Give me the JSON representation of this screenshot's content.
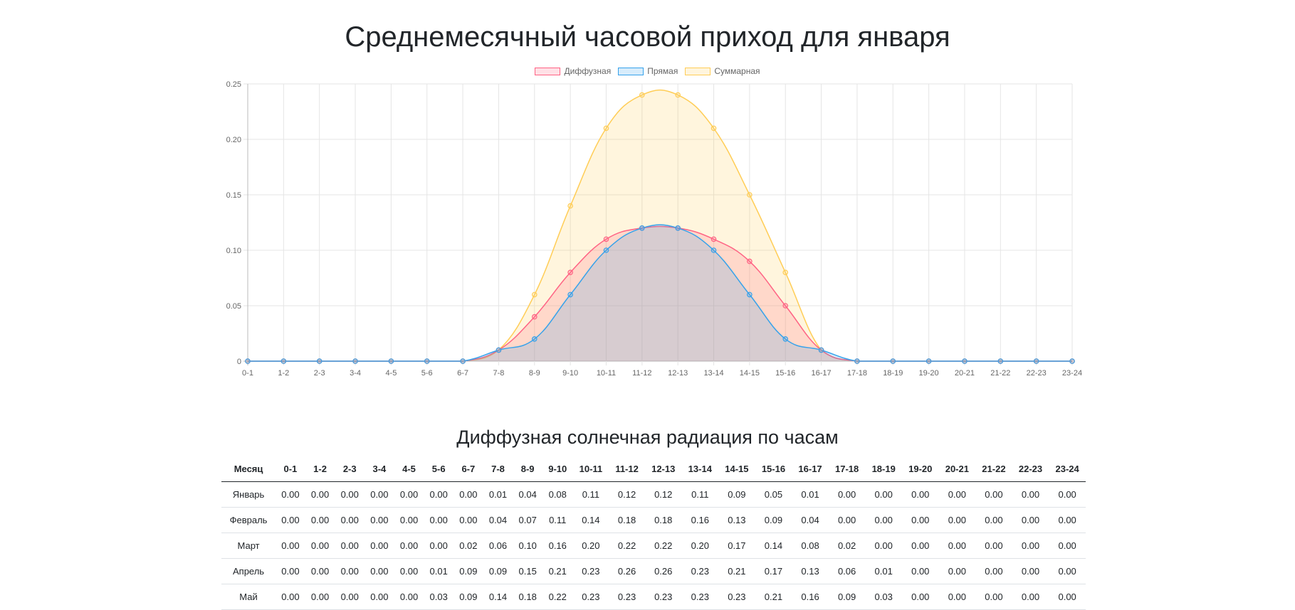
{
  "page": {
    "title": "Среднемесячный часовой приход для января",
    "table_title": "Диффузная солнечная радиация по часам"
  },
  "chart_data": {
    "type": "area",
    "title": "Среднемесячный часовой приход для января",
    "categories": [
      "0-1",
      "1-2",
      "2-3",
      "3-4",
      "4-5",
      "5-6",
      "6-7",
      "7-8",
      "8-9",
      "9-10",
      "10-11",
      "11-12",
      "12-13",
      "13-14",
      "14-15",
      "15-16",
      "16-17",
      "17-18",
      "18-19",
      "19-20",
      "20-21",
      "21-22",
      "22-23",
      "23-24"
    ],
    "ylim": [
      0,
      0.25
    ],
    "yticks": [
      "0",
      "0.05",
      "0.10",
      "0.15",
      "0.20",
      "0.25"
    ],
    "ytick_values": [
      0,
      0.05,
      0.1,
      0.15,
      0.2,
      0.25
    ],
    "grid": true,
    "legend_position": "top-center",
    "series": [
      {
        "name": "Суммарная",
        "color": "#ffcd56",
        "fill": "rgba(255,205,86,0.2)",
        "values": [
          0,
          0,
          0,
          0,
          0,
          0,
          0,
          0.01,
          0.06,
          0.14,
          0.21,
          0.24,
          0.24,
          0.21,
          0.15,
          0.08,
          0.01,
          0,
          0,
          0,
          0,
          0,
          0,
          0
        ]
      },
      {
        "name": "Диффузная",
        "color": "#ff6384",
        "fill": "rgba(255,99,132,0.2)",
        "values": [
          0,
          0,
          0,
          0,
          0,
          0,
          0,
          0.01,
          0.04,
          0.08,
          0.11,
          0.12,
          0.12,
          0.11,
          0.09,
          0.05,
          0.01,
          0,
          0,
          0,
          0,
          0,
          0,
          0
        ]
      },
      {
        "name": "Прямая",
        "color": "#36a2eb",
        "fill": "rgba(54,162,235,0.2)",
        "values": [
          0,
          0,
          0,
          0,
          0,
          0,
          0,
          0.01,
          0.02,
          0.06,
          0.1,
          0.12,
          0.12,
          0.1,
          0.06,
          0.02,
          0.01,
          0,
          0,
          0,
          0,
          0,
          0,
          0
        ]
      }
    ],
    "legend_order": [
      "Диффузная",
      "Прямая",
      "Суммарная"
    ]
  },
  "table": {
    "headers": [
      "Месяц",
      "0-1",
      "1-2",
      "2-3",
      "3-4",
      "4-5",
      "5-6",
      "6-7",
      "7-8",
      "8-9",
      "9-10",
      "10-11",
      "11-12",
      "12-13",
      "13-14",
      "14-15",
      "15-16",
      "16-17",
      "17-18",
      "18-19",
      "19-20",
      "20-21",
      "21-22",
      "22-23",
      "23-24"
    ],
    "rows": [
      [
        "Январь",
        "0.00",
        "0.00",
        "0.00",
        "0.00",
        "0.00",
        "0.00",
        "0.00",
        "0.01",
        "0.04",
        "0.08",
        "0.11",
        "0.12",
        "0.12",
        "0.11",
        "0.09",
        "0.05",
        "0.01",
        "0.00",
        "0.00",
        "0.00",
        "0.00",
        "0.00",
        "0.00",
        "0.00"
      ],
      [
        "Февраль",
        "0.00",
        "0.00",
        "0.00",
        "0.00",
        "0.00",
        "0.00",
        "0.00",
        "0.04",
        "0.07",
        "0.11",
        "0.14",
        "0.18",
        "0.18",
        "0.16",
        "0.13",
        "0.09",
        "0.04",
        "0.00",
        "0.00",
        "0.00",
        "0.00",
        "0.00",
        "0.00",
        "0.00"
      ],
      [
        "Март",
        "0.00",
        "0.00",
        "0.00",
        "0.00",
        "0.00",
        "0.00",
        "0.02",
        "0.06",
        "0.10",
        "0.16",
        "0.20",
        "0.22",
        "0.22",
        "0.20",
        "0.17",
        "0.14",
        "0.08",
        "0.02",
        "0.00",
        "0.00",
        "0.00",
        "0.00",
        "0.00",
        "0.00"
      ],
      [
        "Апрель",
        "0.00",
        "0.00",
        "0.00",
        "0.00",
        "0.00",
        "0.01",
        "0.09",
        "0.09",
        "0.15",
        "0.21",
        "0.23",
        "0.26",
        "0.26",
        "0.23",
        "0.21",
        "0.17",
        "0.13",
        "0.06",
        "0.01",
        "0.00",
        "0.00",
        "0.00",
        "0.00",
        "0.00"
      ],
      [
        "Май",
        "0.00",
        "0.00",
        "0.00",
        "0.00",
        "0.00",
        "0.03",
        "0.09",
        "0.14",
        "0.18",
        "0.22",
        "0.23",
        "0.23",
        "0.23",
        "0.23",
        "0.23",
        "0.21",
        "0.16",
        "0.09",
        "0.03",
        "0.00",
        "0.00",
        "0.00",
        "0.00",
        "0.00"
      ]
    ]
  }
}
